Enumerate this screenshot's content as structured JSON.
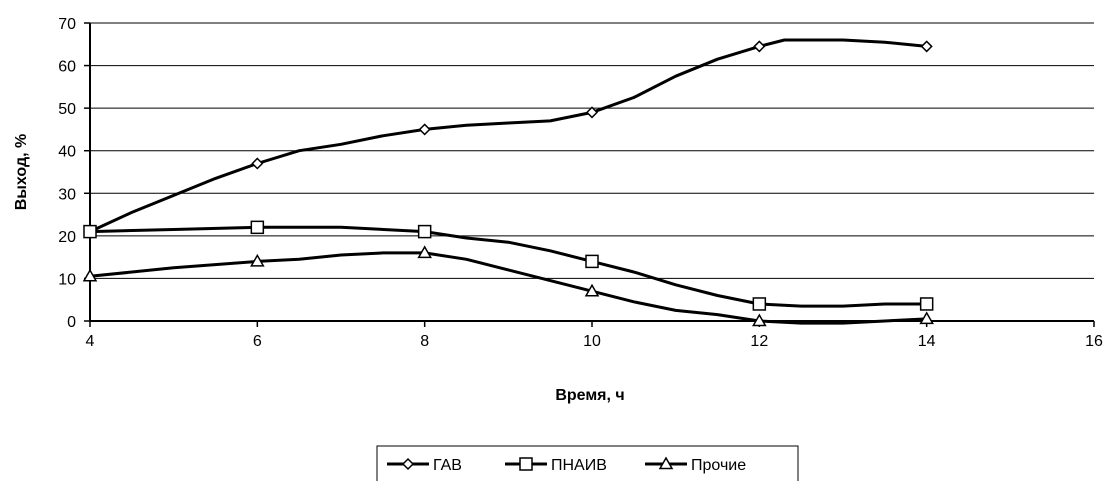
{
  "chart_data": {
    "type": "line",
    "xlabel": "Время, ч",
    "ylabel": "Выход, %",
    "xlim": [
      4,
      16
    ],
    "ylim": [
      0,
      70
    ],
    "x_ticks": [
      4,
      6,
      8,
      10,
      12,
      14,
      16
    ],
    "y_ticks": [
      0,
      10,
      20,
      30,
      40,
      50,
      60,
      70
    ],
    "grid": "horizontal",
    "legend_position": "bottom-center",
    "series": [
      {
        "name": "ГАВ",
        "marker": "diamond",
        "x": [
          4,
          6,
          8,
          10,
          12,
          14
        ],
        "y": [
          21,
          37,
          45,
          49,
          64.5,
          64.5
        ],
        "curve": [
          [
            4,
            21
          ],
          [
            4.5,
            25.5
          ],
          [
            5,
            29.5
          ],
          [
            5.5,
            33.5
          ],
          [
            6,
            37
          ],
          [
            6.5,
            40
          ],
          [
            7,
            41.5
          ],
          [
            7.5,
            43.5
          ],
          [
            8,
            45
          ],
          [
            8.5,
            46
          ],
          [
            9,
            46.5
          ],
          [
            9.5,
            47
          ],
          [
            10,
            49
          ],
          [
            10.5,
            52.5
          ],
          [
            11,
            57.5
          ],
          [
            11.5,
            61.5
          ],
          [
            12,
            64.5
          ],
          [
            12.3,
            66
          ],
          [
            13,
            66
          ],
          [
            13.5,
            65.5
          ],
          [
            14,
            64.5
          ]
        ]
      },
      {
        "name": "ПНАИВ",
        "marker": "square",
        "x": [
          4,
          6,
          8,
          10,
          12,
          14
        ],
        "y": [
          21,
          22,
          21,
          14,
          4,
          4
        ],
        "curve": [
          [
            4,
            21
          ],
          [
            5,
            21.5
          ],
          [
            6,
            22
          ],
          [
            7,
            22
          ],
          [
            8,
            21
          ],
          [
            8.5,
            19.5
          ],
          [
            9,
            18.5
          ],
          [
            9.5,
            16.5
          ],
          [
            10,
            14
          ],
          [
            10.5,
            11.5
          ],
          [
            11,
            8.5
          ],
          [
            11.5,
            6
          ],
          [
            12,
            4
          ],
          [
            12.5,
            3.5
          ],
          [
            13,
            3.5
          ],
          [
            13.5,
            4
          ],
          [
            14,
            4
          ]
        ]
      },
      {
        "name": "Прочие",
        "marker": "triangle",
        "x": [
          4,
          6,
          8,
          10,
          12,
          14
        ],
        "y": [
          10.5,
          14,
          16,
          7,
          0,
          0.5
        ],
        "curve": [
          [
            4,
            10.5
          ],
          [
            5,
            12.5
          ],
          [
            6,
            14
          ],
          [
            6.5,
            14.5
          ],
          [
            7,
            15.5
          ],
          [
            7.5,
            16
          ],
          [
            8,
            16
          ],
          [
            8.5,
            14.5
          ],
          [
            9,
            12
          ],
          [
            9.5,
            9.5
          ],
          [
            10,
            7
          ],
          [
            10.5,
            4.5
          ],
          [
            11,
            2.5
          ],
          [
            11.5,
            1.5
          ],
          [
            12,
            0
          ],
          [
            12.5,
            -0.5
          ],
          [
            13,
            -0.5
          ],
          [
            13.5,
            0
          ],
          [
            14,
            0.5
          ]
        ]
      }
    ]
  }
}
